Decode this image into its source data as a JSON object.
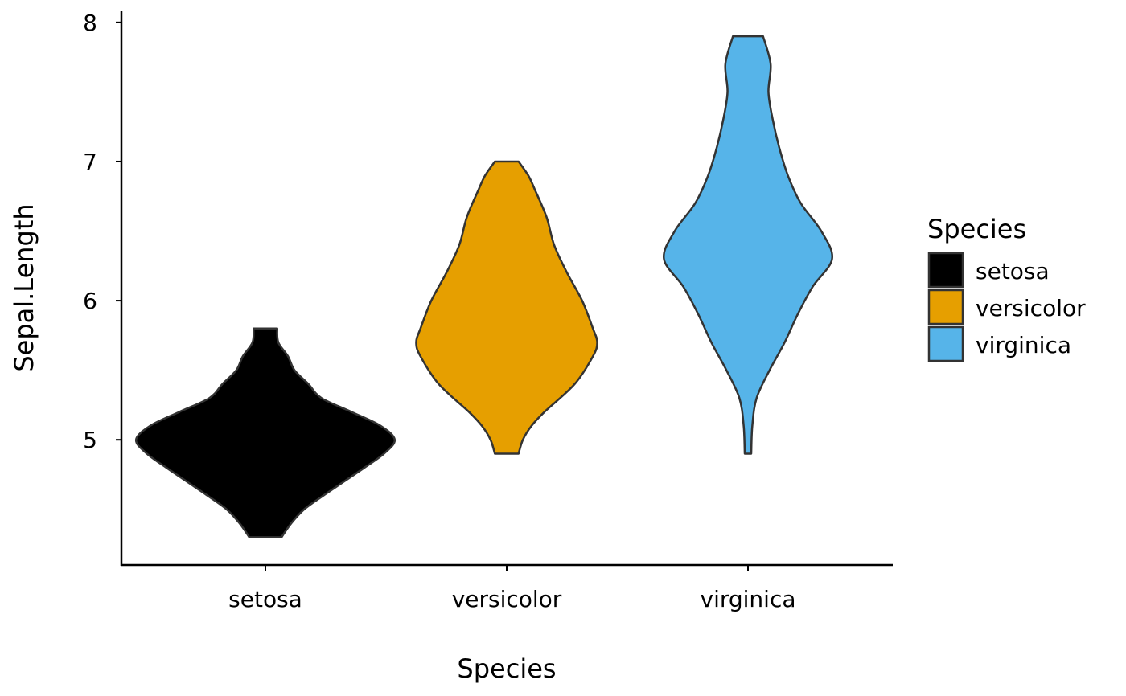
{
  "chart_data": {
    "type": "violin",
    "xlabel": "Species",
    "ylabel": "Sepal.Length",
    "ylim": [
      4.1,
      8.08
    ],
    "yticks": [
      5,
      6,
      7,
      8
    ],
    "categories": [
      "setosa",
      "versicolor",
      "virginica"
    ],
    "grid": false,
    "legend": {
      "title": "Species",
      "placement": "right",
      "entries": [
        "setosa",
        "versicolor",
        "virginica"
      ]
    },
    "series": [
      {
        "name": "setosa",
        "color": "#000000",
        "min": 4.3,
        "max": 5.8,
        "profile": [
          [
            4.3,
            0.15
          ],
          [
            4.4,
            0.24
          ],
          [
            4.5,
            0.36
          ],
          [
            4.6,
            0.54
          ],
          [
            4.7,
            0.73
          ],
          [
            4.8,
            0.92
          ],
          [
            4.9,
            1.1
          ],
          [
            5.0,
            1.2
          ],
          [
            5.1,
            1.07
          ],
          [
            5.2,
            0.8
          ],
          [
            5.3,
            0.52
          ],
          [
            5.4,
            0.4
          ],
          [
            5.5,
            0.27
          ],
          [
            5.6,
            0.21
          ],
          [
            5.7,
            0.12
          ],
          [
            5.8,
            0.11
          ]
        ]
      },
      {
        "name": "versicolor",
        "color": "#E69F00",
        "min": 4.9,
        "max": 7.0,
        "profile": [
          [
            4.9,
            0.11
          ],
          [
            5.0,
            0.15
          ],
          [
            5.1,
            0.23
          ],
          [
            5.2,
            0.35
          ],
          [
            5.4,
            0.63
          ],
          [
            5.6,
            0.8
          ],
          [
            5.7,
            0.84
          ],
          [
            5.8,
            0.8
          ],
          [
            6.0,
            0.7
          ],
          [
            6.2,
            0.56
          ],
          [
            6.4,
            0.44
          ],
          [
            6.6,
            0.37
          ],
          [
            6.8,
            0.26
          ],
          [
            6.9,
            0.2
          ],
          [
            7.0,
            0.11
          ]
        ]
      },
      {
        "name": "virginica",
        "color": "#56B4E9",
        "min": 4.9,
        "max": 7.9,
        "profile": [
          [
            4.9,
            0.03
          ],
          [
            5.1,
            0.04
          ],
          [
            5.3,
            0.08
          ],
          [
            5.5,
            0.2
          ],
          [
            5.7,
            0.34
          ],
          [
            5.9,
            0.46
          ],
          [
            6.1,
            0.6
          ],
          [
            6.3,
            0.78
          ],
          [
            6.5,
            0.68
          ],
          [
            6.7,
            0.49
          ],
          [
            6.9,
            0.37
          ],
          [
            7.1,
            0.29
          ],
          [
            7.3,
            0.23
          ],
          [
            7.5,
            0.19
          ],
          [
            7.7,
            0.21
          ],
          [
            7.9,
            0.14
          ]
        ]
      }
    ]
  }
}
